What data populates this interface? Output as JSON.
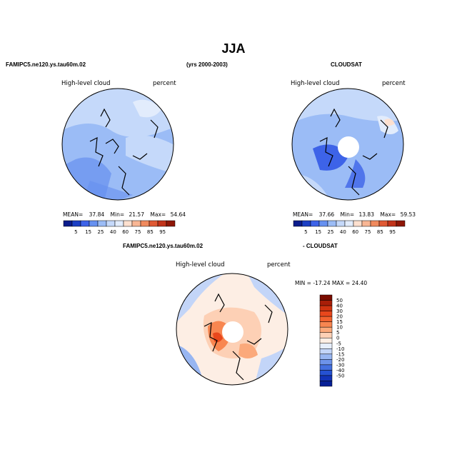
{
  "figure": {
    "title": "JJA",
    "top_left_label": "FAMIPC5.ne120.ys.tau60m.02",
    "top_center_label": "(yrs 2000-2003)",
    "top_right_label": "CLOUDSAT",
    "bottom_left_label": "FAMIPC5.ne120.ys.tau60m.02",
    "bottom_right_label": "- CLOUDSAT"
  },
  "panels": [
    {
      "variable": "High-level cloud",
      "units": "percent",
      "mean_label": "MEAN=",
      "mean": "37.84",
      "min_label": "Min=",
      "min": "21.57",
      "max_label": "Max=",
      "max": "54.64"
    },
    {
      "variable": "High-level cloud",
      "units": "percent",
      "mean_label": "MEAN=",
      "mean": "37.66",
      "min_label": "Min=",
      "min": "13.83",
      "max_label": "Max=",
      "max": "59.53"
    },
    {
      "variable": "High-level cloud",
      "units": "percent",
      "minmax": "MIN = -17.24  MAX =   24.40"
    }
  ],
  "abs_colorbar": {
    "labels": [
      "5",
      "15",
      "25",
      "40",
      "60",
      "75",
      "85",
      "95"
    ],
    "colors": [
      "#0b1c8c",
      "#1c3fc4",
      "#3d63e8",
      "#6690f0",
      "#9bbcf6",
      "#c5d9fa",
      "#e2ecfc",
      "#fde0cf",
      "#f8b694",
      "#f08a5e",
      "#e05a34",
      "#c2331a",
      "#8e1706"
    ]
  },
  "diff_colorbar": {
    "labels": [
      "50",
      "40",
      "30",
      "20",
      "15",
      "10",
      "5",
      "0",
      "-5",
      "-10",
      "-15",
      "-20",
      "-30",
      "-40",
      "-50"
    ],
    "colors": [
      "#7a0c00",
      "#a81e08",
      "#cf3310",
      "#e8471c",
      "#f3622f",
      "#f88650",
      "#fba97b",
      "#fdd0b5",
      "#fdeee4",
      "#e6eefc",
      "#c3d5f8",
      "#98b6f2",
      "#6d93ea",
      "#4470e0",
      "#2551d2",
      "#1233b8",
      "#061f96"
    ]
  }
}
